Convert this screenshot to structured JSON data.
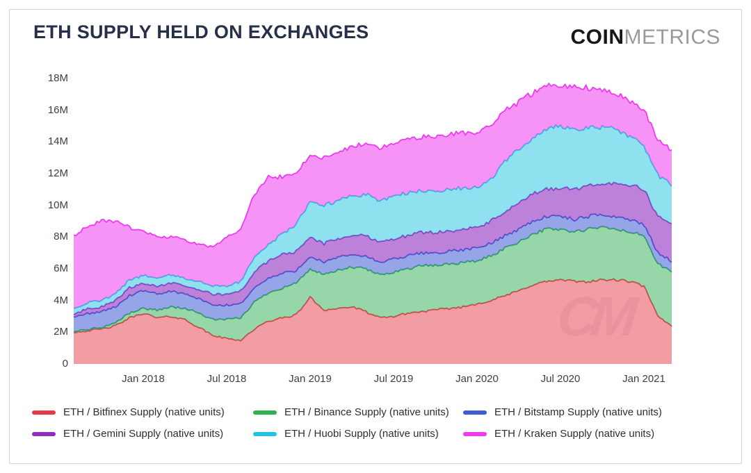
{
  "header": {
    "title": "ETH SUPPLY HELD ON EXCHANGES",
    "logo": {
      "bold": "COIN",
      "light": "METRICS"
    }
  },
  "watermark": "CM",
  "chart_data": {
    "type": "area",
    "stacked": true,
    "title": "ETH SUPPLY HELD ON EXCHANGES",
    "grid": false,
    "legend_position": "bottom",
    "y_unit": "native units (millions of ETH)",
    "ylim": [
      0,
      18
    ],
    "yticks": [
      {
        "value": 0,
        "label": "0"
      },
      {
        "value": 2,
        "label": "2M"
      },
      {
        "value": 4,
        "label": "4M"
      },
      {
        "value": 6,
        "label": "6M"
      },
      {
        "value": 8,
        "label": "8M"
      },
      {
        "value": 10,
        "label": "10M"
      },
      {
        "value": 12,
        "label": "12M"
      },
      {
        "value": 14,
        "label": "14M"
      },
      {
        "value": 16,
        "label": "16M"
      },
      {
        "value": 18,
        "label": "18M"
      }
    ],
    "x_unit": "month",
    "x_start_month": "2017-08",
    "x_end_month": "2021-03",
    "xticks": [
      {
        "index": 5,
        "label": "Jan 2018"
      },
      {
        "index": 11,
        "label": "Jul 2018"
      },
      {
        "index": 17,
        "label": "Jan 2019"
      },
      {
        "index": 23,
        "label": "Jul 2019"
      },
      {
        "index": 29,
        "label": "Jan 2020"
      },
      {
        "index": 35,
        "label": "Jul 2020"
      },
      {
        "index": 41,
        "label": "Jan 2021"
      }
    ],
    "series": [
      {
        "name": "ETH / Bitfinex Supply (native units)",
        "color": "#e6394a",
        "values": [
          2.0,
          2.1,
          2.2,
          2.4,
          2.9,
          3.2,
          2.9,
          3.0,
          2.8,
          2.3,
          1.8,
          1.6,
          1.5,
          2.2,
          2.7,
          2.9,
          3.1,
          4.2,
          3.4,
          3.5,
          3.6,
          3.3,
          2.9,
          3.0,
          3.2,
          3.3,
          3.4,
          3.5,
          3.6,
          3.8,
          4.0,
          4.3,
          4.6,
          5.0,
          5.2,
          5.3,
          5.2,
          5.2,
          5.3,
          5.3,
          5.2,
          4.9,
          3.0,
          2.4
        ]
      },
      {
        "name": "ETH / Binance Supply (native units)",
        "color": "#2fae52",
        "values": [
          0.05,
          0.08,
          0.1,
          0.2,
          0.3,
          0.3,
          0.5,
          0.6,
          0.7,
          0.9,
          1.0,
          1.2,
          1.4,
          1.7,
          1.8,
          1.9,
          2.0,
          1.8,
          2.2,
          2.4,
          2.5,
          2.7,
          2.7,
          2.8,
          2.8,
          2.9,
          2.8,
          2.8,
          2.8,
          2.7,
          2.8,
          3.0,
          3.1,
          3.2,
          3.3,
          3.2,
          3.1,
          3.3,
          3.3,
          3.2,
          3.1,
          3.2,
          3.3,
          3.4
        ]
      },
      {
        "name": "ETH / Bitstamp Supply (native units)",
        "color": "#3f5bd6",
        "values": [
          0.9,
          1.0,
          1.0,
          1.0,
          1.1,
          1.1,
          1.0,
          1.0,
          0.9,
          0.9,
          0.9,
          0.9,
          0.9,
          0.9,
          0.9,
          0.9,
          0.8,
          0.8,
          0.8,
          0.8,
          0.8,
          0.8,
          0.8,
          0.8,
          0.8,
          0.8,
          0.8,
          0.8,
          0.8,
          0.8,
          0.8,
          0.8,
          0.8,
          0.8,
          0.8,
          0.8,
          0.8,
          0.8,
          0.8,
          0.8,
          0.8,
          0.7,
          0.7,
          0.7
        ]
      },
      {
        "name": "ETH / Gemini Supply (native units)",
        "color": "#8f2fbf",
        "values": [
          0.2,
          0.3,
          0.3,
          0.4,
          0.5,
          0.5,
          0.5,
          0.5,
          0.5,
          0.6,
          0.7,
          0.7,
          0.8,
          1.0,
          1.1,
          1.2,
          1.2,
          1.2,
          1.2,
          1.2,
          1.2,
          1.3,
          1.3,
          1.3,
          1.3,
          1.3,
          1.3,
          1.3,
          1.3,
          1.3,
          1.4,
          1.5,
          1.6,
          1.7,
          1.7,
          1.8,
          1.9,
          1.9,
          2.0,
          2.1,
          2.2,
          2.2,
          2.3,
          2.3
        ]
      },
      {
        "name": "ETH / Huobi Supply (native units)",
        "color": "#22c3e0",
        "values": [
          0.3,
          0.4,
          0.4,
          0.4,
          0.5,
          0.5,
          0.5,
          0.5,
          0.5,
          0.5,
          0.5,
          0.5,
          0.6,
          0.9,
          1.0,
          1.3,
          1.7,
          2.3,
          2.4,
          2.4,
          2.5,
          2.6,
          2.6,
          2.7,
          2.7,
          2.6,
          2.6,
          2.6,
          2.6,
          2.5,
          2.6,
          3.2,
          3.4,
          3.6,
          3.8,
          3.9,
          3.8,
          3.7,
          3.5,
          3.4,
          3.0,
          2.8,
          2.6,
          2.5
        ]
      },
      {
        "name": "ETH / Kraken Supply (native units)",
        "color": "#ef3af0",
        "values": [
          4.6,
          4.8,
          5.0,
          4.6,
          3.3,
          2.8,
          2.6,
          2.4,
          2.4,
          2.3,
          2.5,
          3.1,
          3.3,
          4.0,
          4.3,
          3.6,
          3.2,
          2.9,
          3.0,
          3.0,
          3.1,
          3.2,
          3.3,
          3.3,
          3.3,
          3.4,
          3.4,
          3.5,
          3.5,
          3.4,
          3.5,
          3.2,
          3.0,
          2.8,
          2.7,
          2.6,
          2.7,
          2.5,
          2.4,
          2.3,
          2.3,
          2.3,
          2.2,
          2.2
        ]
      }
    ]
  }
}
